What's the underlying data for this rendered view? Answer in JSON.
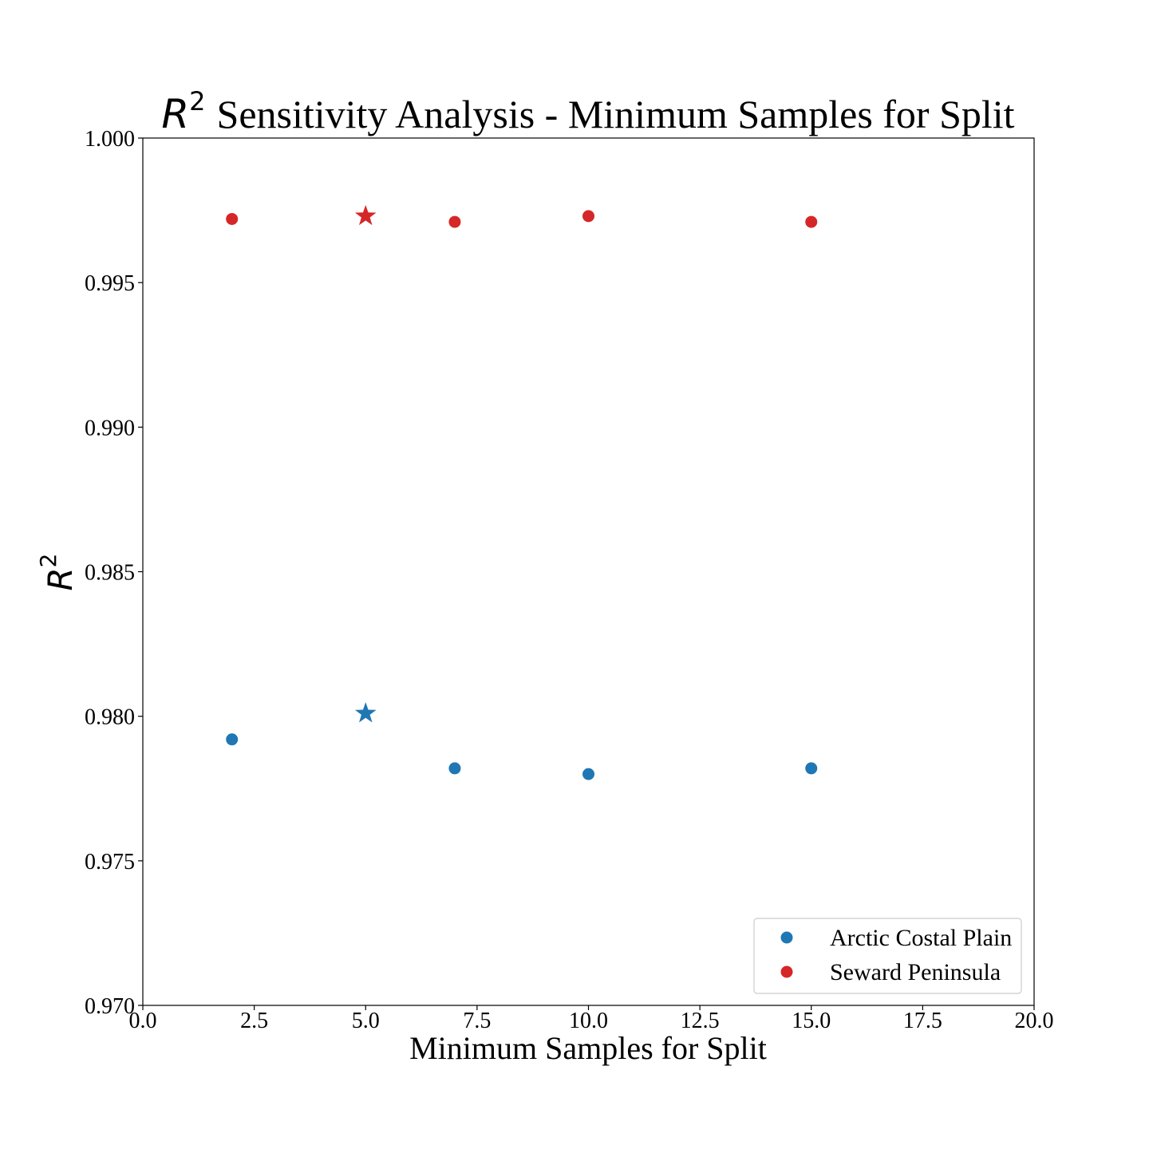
{
  "chart_data": {
    "type": "scatter",
    "title_math": "R",
    "title_math_sup": "2",
    "title_text": "Sensitivity Analysis - Minimum Samples for Split",
    "xlabel": "Minimum Samples for Split",
    "ylabel_math": "R",
    "ylabel_math_sup": "2",
    "xlim": [
      0.0,
      20.0
    ],
    "ylim": [
      0.97,
      1.0
    ],
    "xticks": [
      "0.0",
      "2.5",
      "5.0",
      "7.5",
      "10.0",
      "12.5",
      "15.0",
      "17.5",
      "20.0"
    ],
    "yticks": [
      "0.970",
      "0.975",
      "0.980",
      "0.985",
      "0.990",
      "0.995",
      "1.000"
    ],
    "grid": false,
    "legend_position": "lower-right",
    "series": [
      {
        "name": "Arctic Costal Plain",
        "color": "#1f77b4",
        "x": [
          2,
          5,
          7,
          10,
          15
        ],
        "y": [
          0.9792,
          0.9801,
          0.9782,
          0.978,
          0.9782
        ],
        "markers": [
          "circle",
          "star",
          "circle",
          "circle",
          "circle"
        ]
      },
      {
        "name": "Seward Peninsula",
        "color": "#d62728",
        "x": [
          2,
          5,
          7,
          10,
          15
        ],
        "y": [
          0.9972,
          0.9973,
          0.9971,
          0.9973,
          0.9971
        ],
        "markers": [
          "circle",
          "star",
          "circle",
          "circle",
          "circle"
        ]
      }
    ]
  }
}
